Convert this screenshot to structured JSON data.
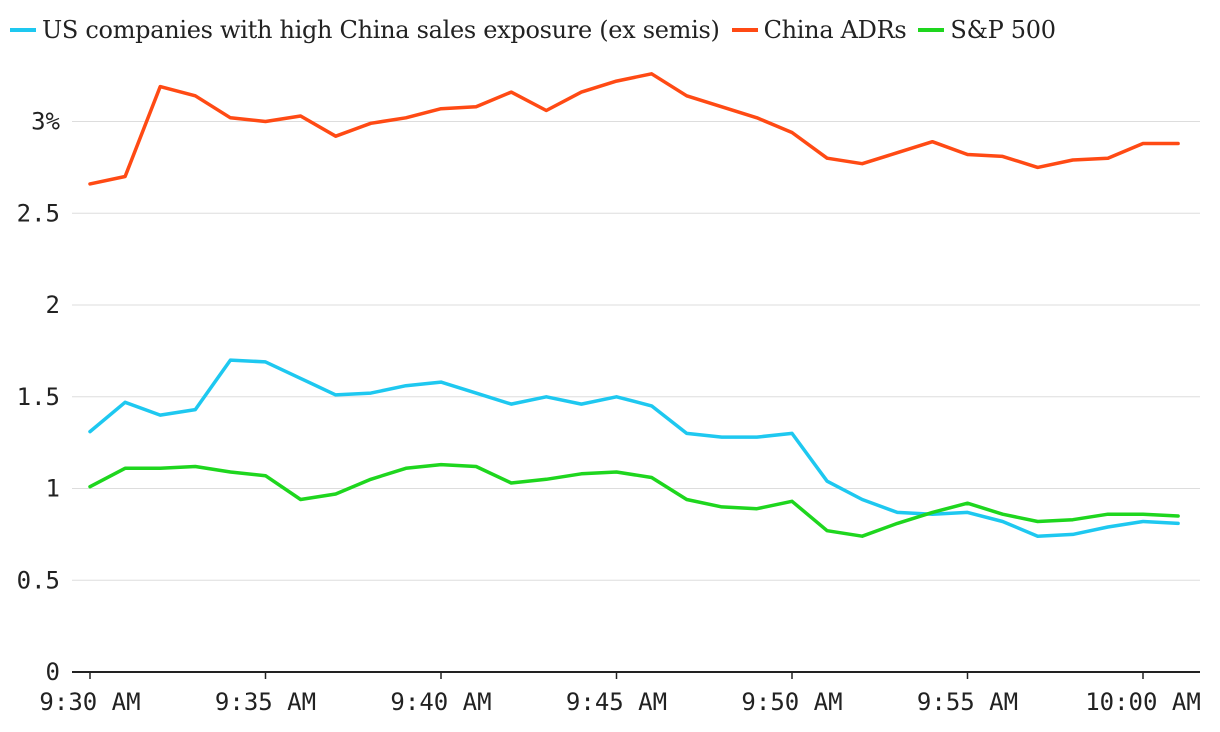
{
  "chart_data": {
    "type": "line",
    "title": "",
    "xlabel": "",
    "ylabel": "",
    "ylim": [
      0,
      3.3
    ],
    "y_ticks": [
      0,
      0.5,
      1,
      1.5,
      2,
      2.5,
      3
    ],
    "y_tick_labels": [
      "0",
      "0.5",
      "1",
      "1.5",
      "2",
      "2.5",
      "3%"
    ],
    "x_tick_labels": [
      "9:30 AM",
      "9:35 AM",
      "9:40 AM",
      "9:45 AM",
      "9:50 AM",
      "9:55 AM",
      "10:00 AM"
    ],
    "x": [
      "9:30",
      "9:31",
      "9:32",
      "9:33",
      "9:34",
      "9:35",
      "9:36",
      "9:37",
      "9:38",
      "9:39",
      "9:40",
      "9:41",
      "9:42",
      "9:43",
      "9:44",
      "9:45",
      "9:46",
      "9:47",
      "9:48",
      "9:49",
      "9:50",
      "9:51",
      "9:52",
      "9:53",
      "9:54",
      "9:55",
      "9:56",
      "9:57",
      "9:58",
      "9:59",
      "10:00",
      "10:01"
    ],
    "grid": true,
    "legend_position": "top",
    "series": [
      {
        "name": "US companies with high China sales exposure (ex semis)",
        "color": "#1ec8f0",
        "values": [
          1.31,
          1.47,
          1.4,
          1.43,
          1.7,
          1.69,
          1.6,
          1.51,
          1.52,
          1.56,
          1.58,
          1.52,
          1.46,
          1.5,
          1.46,
          1.5,
          1.45,
          1.3,
          1.28,
          1.28,
          1.3,
          1.04,
          0.94,
          0.87,
          0.86,
          0.87,
          0.82,
          0.74,
          0.75,
          0.79,
          0.82,
          0.81
        ]
      },
      {
        "name": "China ADRs",
        "color": "#ff4a14",
        "values": [
          2.66,
          2.7,
          3.19,
          3.14,
          3.02,
          3.0,
          3.03,
          2.92,
          2.99,
          3.02,
          3.07,
          3.08,
          3.16,
          3.06,
          3.16,
          3.22,
          3.26,
          3.14,
          3.08,
          3.02,
          2.94,
          2.8,
          2.77,
          2.83,
          2.89,
          2.82,
          2.81,
          2.75,
          2.79,
          2.8,
          2.88,
          2.88
        ]
      },
      {
        "name": "S&P 500",
        "color": "#1ed61e",
        "values": [
          1.01,
          1.11,
          1.11,
          1.12,
          1.09,
          1.07,
          0.94,
          0.97,
          1.05,
          1.11,
          1.13,
          1.12,
          1.03,
          1.05,
          1.08,
          1.09,
          1.06,
          0.94,
          0.9,
          0.89,
          0.93,
          0.77,
          0.74,
          0.81,
          0.87,
          0.92,
          0.86,
          0.82,
          0.83,
          0.86,
          0.86,
          0.85
        ]
      }
    ]
  }
}
